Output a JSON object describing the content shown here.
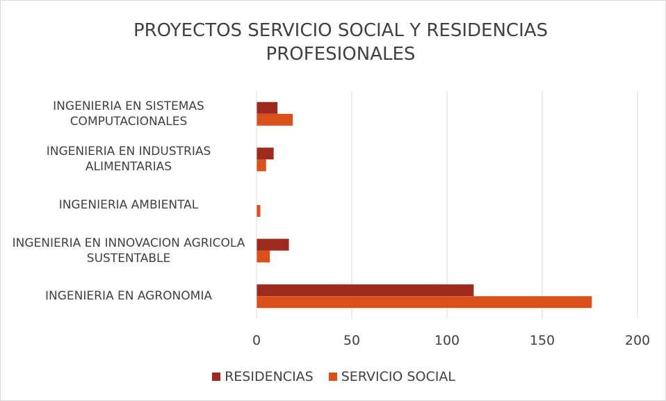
{
  "chart_data": {
    "type": "bar",
    "orientation": "horizontal",
    "title": "PROYECTOS SERVICIO SOCIAL Y RESIDENCIAS PROFESIONALES",
    "categories": [
      "INGENIERIA EN SISTEMAS COMPUTACIONALES",
      "INGENIERIA EN INDUSTRIAS ALIMENTARIAS",
      "INGENIERIA AMBIENTAL",
      "INGENIERIA EN INNOVACION AGRICOLA SUSTENTABLE",
      "INGENIERIA EN AGRONOMIA"
    ],
    "series": [
      {
        "name": "RESIDENCIAS",
        "color": "#9e2a1e",
        "values": [
          11,
          9,
          0,
          17,
          114
        ]
      },
      {
        "name": "SERVICIO SOCIAL",
        "color": "#d9501a",
        "values": [
          19,
          5,
          2,
          7,
          176
        ]
      }
    ],
    "xlim": [
      0,
      200
    ],
    "xticks": [
      0,
      50,
      100,
      150,
      200
    ],
    "grid": true,
    "legend": "bottom"
  }
}
